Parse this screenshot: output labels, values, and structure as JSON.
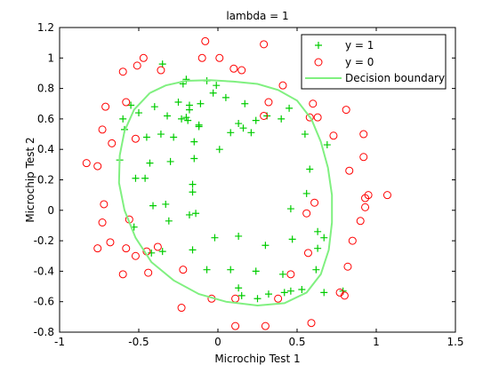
{
  "chart_data": {
    "type": "scatter",
    "title": "lambda = 1",
    "xlabel": "Microchip Test 1",
    "ylabel": "Microchip Test 2",
    "xlim": [
      -1,
      1.5
    ],
    "ylim": [
      -0.8,
      1.2
    ],
    "xticks": [
      -1,
      -0.5,
      0,
      0.5,
      1,
      1.5
    ],
    "yticks": [
      -0.8,
      -0.6,
      -0.4,
      -0.2,
      0,
      0.2,
      0.4,
      0.6,
      0.8,
      1,
      1.2
    ],
    "x_tick_labels": [
      "-1",
      "-0.5",
      "0",
      "0.5",
      "1",
      "1.5"
    ],
    "y_tick_labels": [
      "-0.8",
      "-0.6",
      "-0.4",
      "-0.2",
      "0",
      "0.2",
      "0.4",
      "0.6",
      "0.8",
      "1",
      "1.2"
    ],
    "grid": false,
    "legend_position": "top-right",
    "series": [
      {
        "name": "y = 1",
        "marker": "plus",
        "color": "#00cc00",
        "points": [
          [
            -0.35,
            0.96
          ],
          [
            -0.2,
            0.86
          ],
          [
            -0.22,
            0.83
          ],
          [
            -0.07,
            0.85
          ],
          [
            -0.01,
            0.82
          ],
          [
            -0.55,
            0.69
          ],
          [
            -0.6,
            0.6
          ],
          [
            -0.4,
            0.68
          ],
          [
            -0.25,
            0.71
          ],
          [
            -0.18,
            0.69
          ],
          [
            -0.18,
            0.66
          ],
          [
            -0.11,
            0.7
          ],
          [
            -0.03,
            0.77
          ],
          [
            0.05,
            0.74
          ],
          [
            0.17,
            0.7
          ],
          [
            -0.5,
            0.64
          ],
          [
            -0.59,
            0.53
          ],
          [
            -0.32,
            0.62
          ],
          [
            -0.23,
            0.6
          ],
          [
            -0.2,
            0.61
          ],
          [
            -0.19,
            0.59
          ],
          [
            -0.12,
            0.56
          ],
          [
            0.13,
            0.57
          ],
          [
            0.24,
            0.59
          ],
          [
            0.31,
            0.62
          ],
          [
            0.45,
            0.67
          ],
          [
            0.4,
            0.6
          ],
          [
            0.16,
            0.54
          ],
          [
            0.21,
            0.51
          ],
          [
            0.08,
            0.51
          ],
          [
            -0.36,
            0.5
          ],
          [
            -0.45,
            0.48
          ],
          [
            -0.28,
            0.48
          ],
          [
            -0.15,
            0.45
          ],
          [
            -0.12,
            0.55
          ],
          [
            0.55,
            0.5
          ],
          [
            0.69,
            0.43
          ],
          [
            -0.62,
            0.33
          ],
          [
            -0.43,
            0.31
          ],
          [
            -0.3,
            0.32
          ],
          [
            0.01,
            0.4
          ],
          [
            0.58,
            0.27
          ],
          [
            -0.52,
            0.21
          ],
          [
            -0.46,
            0.21
          ],
          [
            -0.15,
            0.34
          ],
          [
            -0.16,
            0.17
          ],
          [
            0.56,
            0.11
          ],
          [
            -0.16,
            0.12
          ],
          [
            -0.33,
            0.04
          ],
          [
            -0.41,
            0.03
          ],
          [
            -0.14,
            -0.02
          ],
          [
            -0.18,
            -0.03
          ],
          [
            -0.31,
            -0.07
          ],
          [
            0.46,
            0.01
          ],
          [
            -0.53,
            -0.11
          ],
          [
            -0.02,
            -0.18
          ],
          [
            0.13,
            -0.17
          ],
          [
            0.3,
            -0.23
          ],
          [
            0.47,
            -0.19
          ],
          [
            0.67,
            -0.18
          ],
          [
            0.63,
            -0.14
          ],
          [
            0.63,
            -0.25
          ],
          [
            -0.42,
            -0.28
          ],
          [
            -0.35,
            -0.27
          ],
          [
            -0.16,
            -0.26
          ],
          [
            -0.07,
            -0.39
          ],
          [
            0.24,
            -0.4
          ],
          [
            0.41,
            -0.42
          ],
          [
            0.08,
            -0.39
          ],
          [
            0.13,
            -0.51
          ],
          [
            0.15,
            -0.56
          ],
          [
            0.25,
            -0.58
          ],
          [
            0.32,
            -0.55
          ],
          [
            0.42,
            -0.54
          ],
          [
            0.46,
            -0.53
          ],
          [
            0.53,
            -0.52
          ],
          [
            0.62,
            -0.39
          ],
          [
            0.67,
            -0.54
          ],
          [
            0.79,
            -0.53
          ]
        ]
      },
      {
        "name": "y = 0",
        "marker": "circle",
        "color": "#ff0000",
        "points": [
          [
            -0.47,
            1.0
          ],
          [
            -0.6,
            0.91
          ],
          [
            -0.51,
            0.95
          ],
          [
            -0.36,
            0.92
          ],
          [
            -0.08,
            1.11
          ],
          [
            -0.1,
            1.0
          ],
          [
            0.01,
            1.0
          ],
          [
            0.15,
            0.92
          ],
          [
            0.1,
            0.93
          ],
          [
            0.29,
            1.09
          ],
          [
            0.41,
            0.82
          ],
          [
            0.32,
            0.71
          ],
          [
            0.6,
            0.7
          ],
          [
            0.63,
            0.61
          ],
          [
            0.81,
            0.66
          ],
          [
            0.29,
            0.62
          ],
          [
            0.58,
            0.61
          ],
          [
            -0.71,
            0.68
          ],
          [
            -0.73,
            0.53
          ],
          [
            -0.58,
            0.71
          ],
          [
            -0.67,
            0.44
          ],
          [
            -0.52,
            0.47
          ],
          [
            0.73,
            0.49
          ],
          [
            0.92,
            0.5
          ],
          [
            0.83,
            0.26
          ],
          [
            0.92,
            0.35
          ],
          [
            0.93,
            0.08
          ],
          [
            0.95,
            0.1
          ],
          [
            1.07,
            0.1
          ],
          [
            0.93,
            0.02
          ],
          [
            -0.83,
            0.31
          ],
          [
            -0.76,
            0.29
          ],
          [
            -0.72,
            0.04
          ],
          [
            -0.73,
            -0.08
          ],
          [
            -0.56,
            -0.06
          ],
          [
            -0.68,
            -0.21
          ],
          [
            -0.76,
            -0.25
          ],
          [
            -0.58,
            -0.25
          ],
          [
            -0.45,
            -0.27
          ],
          [
            -0.52,
            -0.3
          ],
          [
            -0.38,
            -0.24
          ],
          [
            -0.6,
            -0.42
          ],
          [
            -0.22,
            -0.39
          ],
          [
            -0.44,
            -0.41
          ],
          [
            0.61,
            0.05
          ],
          [
            0.56,
            -0.02
          ],
          [
            0.9,
            -0.07
          ],
          [
            0.85,
            -0.2
          ],
          [
            0.57,
            -0.28
          ],
          [
            0.82,
            -0.37
          ],
          [
            0.46,
            -0.42
          ],
          [
            0.77,
            -0.54
          ],
          [
            0.8,
            -0.56
          ],
          [
            -0.23,
            -0.64
          ],
          [
            -0.04,
            -0.58
          ],
          [
            0.11,
            -0.58
          ],
          [
            0.38,
            -0.58
          ],
          [
            0.11,
            -0.76
          ],
          [
            0.3,
            -0.76
          ],
          [
            0.59,
            -0.74
          ]
        ]
      },
      {
        "name": "Decision boundary",
        "marker": "line",
        "color": "#80f080",
        "points": [
          [
            -0.43,
            0.77
          ],
          [
            -0.33,
            0.82
          ],
          [
            -0.2,
            0.85
          ],
          [
            -0.05,
            0.855
          ],
          [
            0.1,
            0.845
          ],
          [
            0.25,
            0.83
          ],
          [
            0.38,
            0.79
          ],
          [
            0.5,
            0.72
          ],
          [
            0.59,
            0.6
          ],
          [
            0.65,
            0.45
          ],
          [
            0.695,
            0.28
          ],
          [
            0.72,
            0.1
          ],
          [
            0.72,
            -0.08
          ],
          [
            0.7,
            -0.26
          ],
          [
            0.65,
            -0.42
          ],
          [
            0.56,
            -0.54
          ],
          [
            0.42,
            -0.61
          ],
          [
            0.25,
            -0.625
          ],
          [
            0.05,
            -0.6
          ],
          [
            -0.12,
            -0.55
          ],
          [
            -0.28,
            -0.46
          ],
          [
            -0.42,
            -0.34
          ],
          [
            -0.52,
            -0.18
          ],
          [
            -0.59,
            0.0
          ],
          [
            -0.625,
            0.18
          ],
          [
            -0.62,
            0.36
          ],
          [
            -0.59,
            0.52
          ],
          [
            -0.53,
            0.66
          ],
          [
            -0.43,
            0.77
          ]
        ]
      }
    ]
  },
  "legend": {
    "items": [
      {
        "label": "y = 1"
      },
      {
        "label": "y = 0"
      },
      {
        "label": "Decision boundary"
      }
    ]
  }
}
